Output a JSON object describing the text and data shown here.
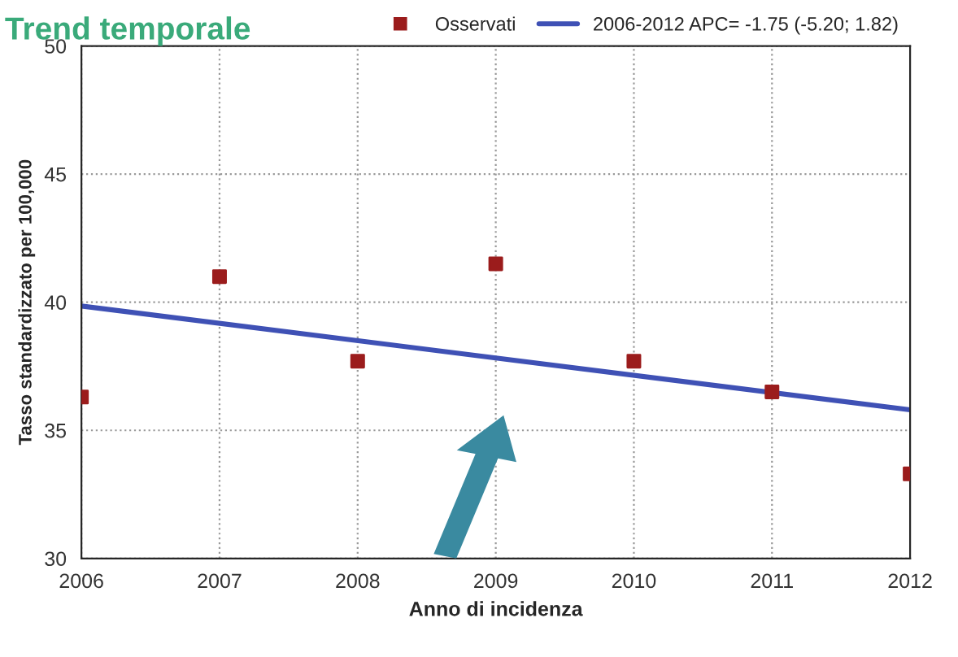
{
  "chart_data": {
    "type": "scatter",
    "title": "Trend temporale",
    "xlabel": "Anno di incidenza",
    "ylabel": "Tasso standardizzato per 100,000",
    "x": [
      2006,
      2007,
      2008,
      2009,
      2010,
      2011,
      2012
    ],
    "series": [
      {
        "name": "Osservati",
        "color": "#9b1c1c",
        "marker": "square",
        "values": [
          36.3,
          41.0,
          37.7,
          41.5,
          37.7,
          36.5,
          33.3
        ]
      },
      {
        "name": "2006-2012 APC= -1.75 (-5.20; 1.82)",
        "type": "line",
        "color": "#3f51b5",
        "marker": "none",
        "line_style": "solid",
        "x": [
          2006,
          2012
        ],
        "values": [
          39.85,
          35.8
        ]
      }
    ],
    "xlim": [
      2006,
      2012
    ],
    "xticks": [
      2006,
      2007,
      2008,
      2009,
      2010,
      2011,
      2012
    ],
    "ylim": [
      30,
      50
    ],
    "yticks": [
      30,
      35,
      40,
      45,
      50
    ],
    "grid": true,
    "legend": "top right"
  }
}
